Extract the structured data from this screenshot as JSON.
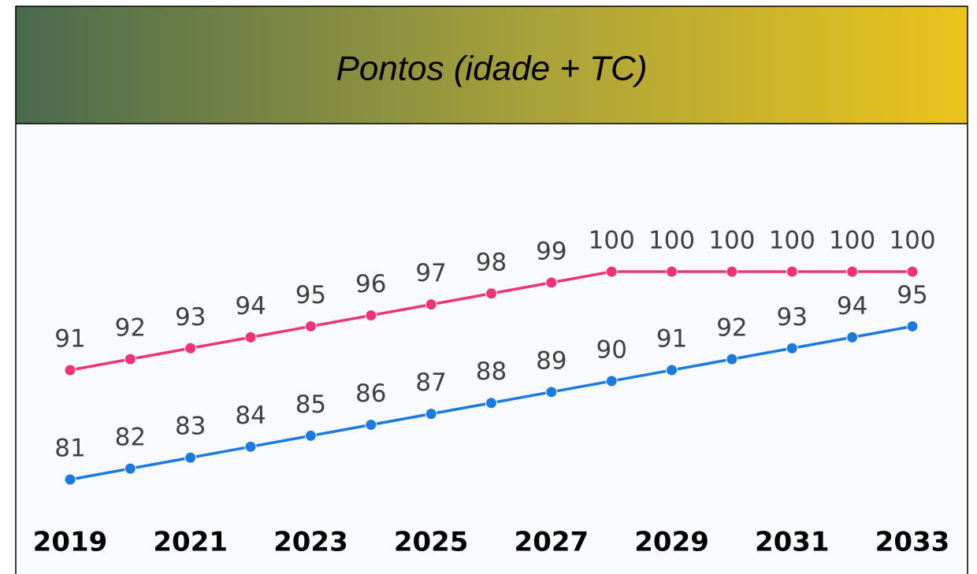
{
  "chart_data": {
    "type": "line",
    "title": "Pontos (idade + TC)",
    "x": [
      2019,
      2020,
      2021,
      2022,
      2023,
      2024,
      2025,
      2026,
      2027,
      2028,
      2029,
      2030,
      2031,
      2032,
      2033
    ],
    "xlim": [
      2019,
      2033
    ],
    "xticks": [
      2019,
      2021,
      2023,
      2025,
      2027,
      2029,
      2031,
      2033
    ],
    "ylim": [
      78,
      105
    ],
    "series": [
      {
        "color": "#f0327a",
        "values": [
          91,
          92,
          93,
          94,
          95,
          96,
          97,
          98,
          99,
          100,
          100,
          100,
          100,
          100,
          100
        ]
      },
      {
        "color": "#1a7ae0",
        "values": [
          81,
          82,
          83,
          84,
          85,
          86,
          87,
          88,
          89,
          90,
          91,
          92,
          93,
          94,
          95
        ]
      }
    ]
  }
}
